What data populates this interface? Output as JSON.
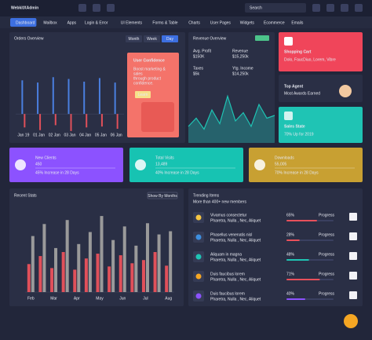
{
  "header": {
    "brand": "WebkitXAdmin",
    "search": "Search"
  },
  "nav": [
    "Dashboard",
    "Mailbox",
    "Apps",
    "Login & Error",
    "UI Elements",
    "Forms & Table",
    "Charts",
    "User Pages",
    "Widgets",
    "Ecommerce",
    "Emails"
  ],
  "orders_overview": {
    "title": "Orders Overview",
    "tabs": [
      "Month",
      "Week",
      "Day"
    ]
  },
  "user_confidence": {
    "title": "User Confidence",
    "text": [
      "Boost marketing &",
      "sales",
      "through product",
      "confidence."
    ],
    "button": "Learn"
  },
  "revenue_overview": {
    "title": "Revenue Overview",
    "stats": [
      {
        "label": "Avg. Profit",
        "value": "$150K"
      },
      {
        "label": "Revenue",
        "value": "$15,250k"
      },
      {
        "label": "Taxes",
        "value": "$5k"
      },
      {
        "label": "Ytg. Income",
        "value": "$14,250k"
      }
    ]
  },
  "shopping_cart": {
    "title": "Shopping Cart",
    "text": "Dolo, FaucDiuo, Lorem, Vibre"
  },
  "top_agent": {
    "title": "Top Agent",
    "text": "Most Awards Earned"
  },
  "sales_state": {
    "title": "Sales State",
    "text": "70% Up for 2019"
  },
  "stat_cards": [
    {
      "title": "New Clients",
      "value": "450",
      "text": "45% Increase in 28 Days"
    },
    {
      "title": "Total Visits",
      "value": "13,489",
      "text": "40% Increase in 28 Days"
    },
    {
      "title": "Downloads",
      "value": "55,005",
      "text": "70% Increase in 28 Days"
    }
  ],
  "recent_stats": {
    "title": "Recent Stats",
    "button": "Show By Months"
  },
  "trending": {
    "title": "Trending Items",
    "subtitle": "More than 400+ new members",
    "items": [
      {
        "name": "Vivamus consectetur",
        "tags": "Pharetra, Nulla , Nec, Aliquet",
        "percent": 65,
        "percent_label": "65%",
        "status": "Progress",
        "color": "#e8505b"
      },
      {
        "name": "Phasellus venenatis nisl",
        "tags": "Pharetra, Nulla , Nec, Aliquet",
        "percent": 28,
        "percent_label": "28%",
        "status": "Progress",
        "color": "#e8505b"
      },
      {
        "name": "Aliquam in magna",
        "tags": "Pharetra, Nulla , Nec, Aliquet",
        "percent": 48,
        "percent_label": "48%",
        "status": "Progress",
        "color": "#1fc4b4"
      },
      {
        "name": "Duis faucibus lorem",
        "tags": "Pharetra, Nulla , Nec, Aliquet",
        "percent": 71,
        "percent_label": "71%",
        "status": "Progress",
        "color": "#e8505b"
      },
      {
        "name": "Duis faucibus lorem",
        "tags": "Pharetra, Nulla , Nec, Aliquet",
        "percent": 40,
        "percent_label": "40%",
        "status": "Progress",
        "color": "#8c52ff"
      }
    ]
  },
  "chart_data": [
    {
      "type": "bar",
      "categories": [
        "Jan 19",
        "01 Jan",
        "02 Jan",
        "03 Jan",
        "04 Jan",
        "05 Jan",
        "06 Jan"
      ],
      "ylim": [
        -40,
        100
      ],
      "series": [
        {
          "color": "#4a7fe0",
          "values": [
            75,
            70,
            82,
            78,
            72,
            80,
            70
          ]
        },
        {
          "color": "#e0505a",
          "values": [
            -30,
            -36,
            -25,
            -38,
            -30,
            -28,
            -33
          ]
        }
      ]
    },
    {
      "type": "area",
      "color": "#1fc4b4",
      "ylim": [
        0,
        100
      ],
      "values": [
        30,
        45,
        25,
        60,
        35,
        85,
        40,
        55,
        30,
        70,
        45,
        50
      ]
    },
    {
      "type": "bar",
      "categories": [
        "Feb",
        null,
        "Mar",
        null,
        "Apr",
        null,
        "May",
        null,
        "Jun",
        null,
        "Jul",
        null,
        "Aug"
      ],
      "ylim": [
        0,
        100
      ],
      "series": [
        {
          "color": "#e0505a",
          "values": [
            35,
            45,
            30,
            50,
            28,
            42,
            48,
            32,
            46,
            36,
            40,
            50,
            33
          ]
        },
        {
          "color": "#9a9a9a",
          "values": [
            70,
            85,
            55,
            90,
            60,
            75,
            95,
            65,
            82,
            58,
            86,
            72,
            76
          ]
        }
      ]
    }
  ]
}
